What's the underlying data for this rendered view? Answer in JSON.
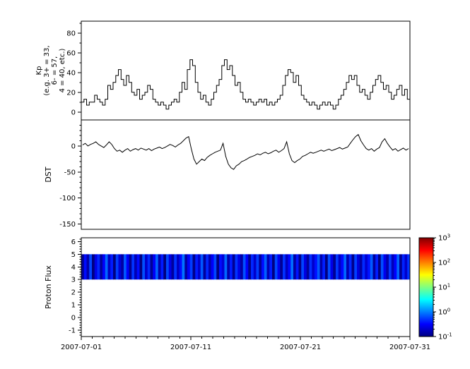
{
  "figure": {
    "background": "#ffffff",
    "axis_color": "#000000",
    "series_color": "#000000"
  },
  "x_axis": {
    "span_days": 30,
    "tick_days": [
      0,
      10,
      20,
      30
    ],
    "tick_labels": [
      "2007-07-01",
      "2007-07-11",
      "2007-07-21",
      "2007-07-31"
    ],
    "minor_tick_interval_days": 1
  },
  "chart_data": [
    {
      "name": "kp",
      "type": "line",
      "style": "step",
      "ylabel_lines": [
        "Kp",
        "(e.g. 3+ = 33,",
        "6- = 57,",
        "4 = 40, etc.)"
      ],
      "ylim": [
        -8,
        92
      ],
      "yticks": [
        0,
        20,
        40,
        60,
        80
      ],
      "minor_ytick_interval": 10,
      "values": [
        10,
        13,
        7,
        10,
        10,
        17,
        13,
        10,
        7,
        13,
        27,
        23,
        30,
        37,
        43,
        33,
        27,
        37,
        30,
        20,
        17,
        23,
        13,
        17,
        20,
        27,
        23,
        13,
        10,
        7,
        10,
        7,
        3,
        7,
        10,
        13,
        10,
        20,
        30,
        23,
        43,
        53,
        47,
        30,
        20,
        13,
        17,
        10,
        7,
        13,
        20,
        27,
        33,
        47,
        53,
        43,
        47,
        37,
        27,
        30,
        20,
        13,
        10,
        13,
        10,
        7,
        10,
        13,
        10,
        13,
        7,
        10,
        7,
        10,
        13,
        17,
        27,
        37,
        43,
        40,
        30,
        37,
        27,
        17,
        13,
        10,
        7,
        10,
        7,
        3,
        7,
        10,
        7,
        10,
        7,
        3,
        7,
        13,
        17,
        23,
        30,
        37,
        33,
        37,
        27,
        20,
        23,
        17,
        13,
        20,
        27,
        33,
        37,
        30,
        23,
        27,
        20,
        13,
        17,
        23,
        27,
        17,
        23,
        13
      ]
    },
    {
      "name": "dst",
      "type": "line",
      "style": "line",
      "ylabel": "DST",
      "ylim": [
        -160,
        50
      ],
      "yticks": [
        0,
        -50,
        -100,
        -150
      ],
      "minor_ytick_interval": 10,
      "values": [
        2,
        5,
        0,
        3,
        5,
        8,
        3,
        0,
        -3,
        2,
        8,
        3,
        -5,
        -10,
        -8,
        -12,
        -8,
        -5,
        -10,
        -7,
        -5,
        -8,
        -4,
        -6,
        -8,
        -5,
        -9,
        -6,
        -4,
        -2,
        -5,
        -3,
        0,
        3,
        1,
        -2,
        2,
        5,
        10,
        15,
        18,
        -5,
        -25,
        -35,
        -30,
        -25,
        -28,
        -22,
        -18,
        -15,
        -12,
        -10,
        -8,
        5,
        -20,
        -35,
        -42,
        -45,
        -38,
        -35,
        -30,
        -28,
        -25,
        -22,
        -20,
        -18,
        -15,
        -17,
        -14,
        -12,
        -15,
        -13,
        -10,
        -8,
        -12,
        -9,
        -5,
        8,
        -15,
        -28,
        -32,
        -28,
        -25,
        -20,
        -18,
        -15,
        -12,
        -14,
        -12,
        -10,
        -8,
        -10,
        -8,
        -6,
        -9,
        -7,
        -5,
        -3,
        -6,
        -4,
        -2,
        5,
        12,
        18,
        22,
        10,
        2,
        -5,
        -8,
        -5,
        -10,
        -6,
        -3,
        8,
        14,
        5,
        -2,
        -8,
        -5,
        -10,
        -7,
        -4,
        -8,
        -5
      ]
    },
    {
      "name": "proton_flux",
      "type": "heatmap",
      "ylabel": "Proton Flux",
      "ylim": [
        -1.5,
        6.3
      ],
      "yticks": [
        -1,
        0,
        1,
        2,
        3,
        4,
        5,
        6
      ],
      "minor_ytick_interval": 0.2,
      "band_y": [
        3,
        5
      ],
      "column_flux": [
        0.12,
        0.35,
        0.15,
        0.6,
        0.1,
        0.25,
        0.45,
        0.13,
        0.3,
        0.8,
        0.18,
        0.4,
        0.1,
        0.55,
        0.22,
        0.14,
        0.7,
        0.3,
        0.12,
        0.5,
        0.16,
        0.35,
        0.1,
        0.65,
        0.2,
        0.45,
        0.12,
        0.3,
        0.75,
        0.15,
        0.4,
        0.1,
        0.6,
        0.25,
        0.13,
        0.5,
        0.18,
        0.35,
        0.9,
        0.14,
        0.3,
        0.55,
        0.11,
        0.4,
        0.2,
        0.7,
        0.13,
        0.45,
        0.16,
        0.3,
        0.6,
        0.1,
        0.35,
        0.22,
        0.8,
        0.15,
        0.4,
        0.12,
        0.5,
        0.25,
        0.14,
        0.65,
        0.3,
        0.11,
        0.45,
        0.2,
        0.55,
        0.13,
        0.35,
        0.75,
        0.16,
        0.4,
        0.1,
        0.6,
        0.28,
        0.12,
        0.5,
        0.18,
        0.33,
        0.85,
        0.14,
        0.38,
        0.11,
        0.58,
        0.24,
        0.13,
        0.48,
        0.2,
        0.36,
        0.7,
        0.15,
        0.42,
        0.1,
        0.62,
        0.26,
        0.12,
        0.52,
        0.19,
        0.34,
        0.8,
        0.16,
        0.44,
        0.11,
        0.56,
        0.23,
        0.14,
        0.46,
        0.21,
        0.37,
        0.72,
        0.13,
        0.41,
        0.1,
        0.64,
        0.27,
        0.15,
        0.53,
        0.17,
        0.32,
        0.78,
        0.12,
        0.43,
        0.2,
        0.5
      ],
      "colorbar": {
        "scale": "log",
        "range": [
          0.1,
          1000
        ],
        "tick_exponents": [
          3,
          2,
          1,
          0,
          -1
        ],
        "colormap": "jet"
      }
    }
  ]
}
